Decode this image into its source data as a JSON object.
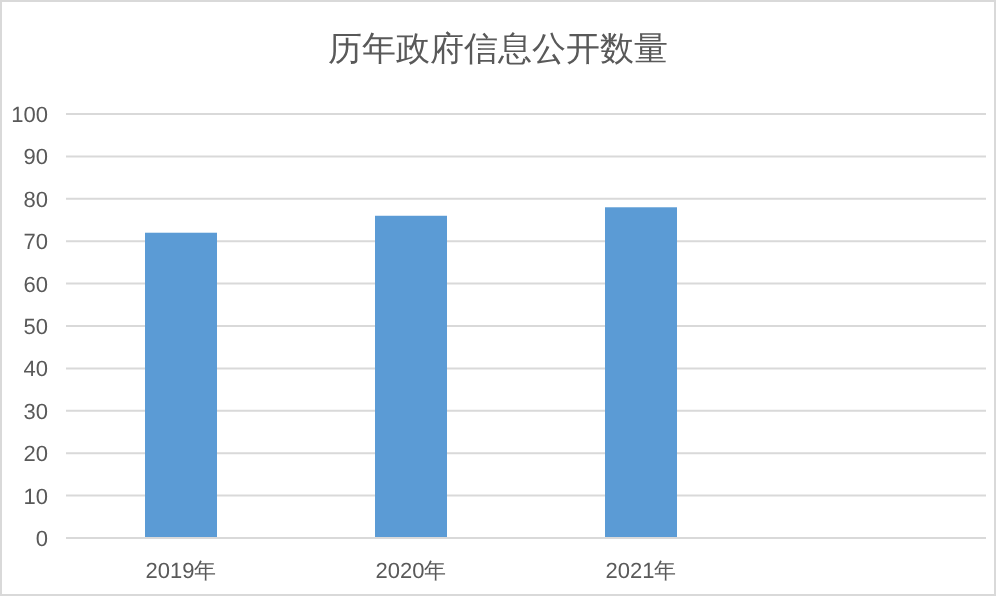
{
  "chart_data": {
    "type": "bar",
    "title": "历年政府信息公开数量",
    "categories": [
      "2019年",
      "2020年",
      "2021年",
      null
    ],
    "values": [
      72,
      76,
      78,
      null
    ],
    "color": "#5b9bd5",
    "ylim": [
      0,
      100
    ],
    "yticks": [
      0,
      10,
      20,
      30,
      40,
      50,
      60,
      70,
      80,
      90,
      100
    ],
    "grid": "y"
  }
}
